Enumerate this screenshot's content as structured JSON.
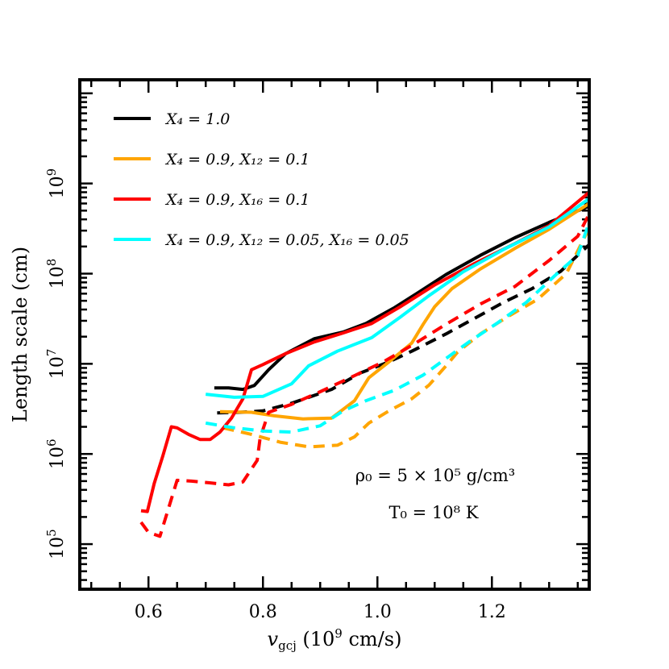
{
  "chart_data": {
    "type": "line",
    "xlabel": {
      "var": "v",
      "sub": "gcj",
      "rest": " (10",
      "exp": "9",
      "tail": " cm/s)"
    },
    "ylabel": "Length scale (cm)",
    "xlim": [
      0.48,
      1.37
    ],
    "ylim_log10": [
      4.5,
      10.15
    ],
    "y_log_scale": true,
    "x_ticks": [
      0.6,
      0.8,
      1.0,
      1.2
    ],
    "x_tick_labels": [
      "0.6",
      "0.8",
      "1.0",
      "1.2"
    ],
    "y_ticks_log10": [
      5,
      6,
      7,
      8,
      9
    ],
    "y_tick_labels": [
      {
        "base": "10",
        "exp": "5"
      },
      {
        "base": "10",
        "exp": "6"
      },
      {
        "base": "10",
        "exp": "7"
      },
      {
        "base": "10",
        "exp": "8"
      },
      {
        "base": "10",
        "exp": "9"
      }
    ],
    "legend_position": "top-left",
    "legend": [
      {
        "key": "black",
        "color": "#000000",
        "label": "X₄ = 1.0"
      },
      {
        "key": "orange",
        "color": "#FFA500",
        "label": "X₄ = 0.9, X₁₂ = 0.1"
      },
      {
        "key": "red",
        "color": "#FF0000",
        "label": "X₄ = 0.9, X₁₆ = 0.1"
      },
      {
        "key": "cyan",
        "color": "#00FFFF",
        "label": "X₄ = 0.9, X₁₂ = 0.05, X₁₆ = 0.05"
      }
    ],
    "annotations": [
      {
        "text": "ρ₀ = 5 × 10⁵ g/cm³"
      },
      {
        "text": "T₀ = 10⁸ K"
      }
    ],
    "series": [
      {
        "key": "black",
        "style": "solid",
        "color": "#000000",
        "points": [
          [
            0.715,
            5415000.0
          ],
          [
            0.74,
            5400000.0
          ],
          [
            0.765,
            5200000.0
          ],
          [
            0.785,
            5750000.0
          ],
          [
            0.81,
            8600000.0
          ],
          [
            0.84,
            13000000.0
          ],
          [
            0.89,
            19000000.0
          ],
          [
            0.94,
            22500000.0
          ],
          [
            0.98,
            28000000.0
          ],
          [
            1.03,
            42000000.0
          ],
          [
            1.07,
            61000000.0
          ],
          [
            1.12,
            98000000.0
          ],
          [
            1.18,
            160000000.0
          ],
          [
            1.24,
            250000000.0
          ],
          [
            1.3,
            370000000.0
          ],
          [
            1.37,
            560000000.0
          ]
        ]
      },
      {
        "key": "black",
        "style": "dashed",
        "color": "#000000",
        "points": [
          [
            0.72,
            2850000.0
          ],
          [
            0.76,
            2900000.0
          ],
          [
            0.8,
            3000000.0
          ],
          [
            0.85,
            3650000.0
          ],
          [
            0.92,
            5200000.0
          ],
          [
            0.97,
            7900000.0
          ],
          [
            1.02,
            10500000.0
          ],
          [
            1.06,
            13800000.0
          ],
          [
            1.12,
            21500000.0
          ],
          [
            1.17,
            32000000.0
          ],
          [
            1.22,
            48000000.0
          ],
          [
            1.27,
            68000000.0
          ],
          [
            1.32,
            106000000.0
          ],
          [
            1.35,
            160000000.0
          ],
          [
            1.37,
            210000000.0
          ]
        ]
      },
      {
        "key": "orange",
        "style": "solid",
        "color": "#FFA500",
        "points": [
          [
            0.725,
            2950000.0
          ],
          [
            0.78,
            2900000.0
          ],
          [
            0.82,
            2650000.0
          ],
          [
            0.87,
            2450000.0
          ],
          [
            0.92,
            2500000.0
          ],
          [
            0.96,
            3900000.0
          ],
          [
            0.985,
            7000000.0
          ],
          [
            1.02,
            10500000.0
          ],
          [
            1.06,
            17000000.0
          ],
          [
            1.08,
            27500000.0
          ],
          [
            1.1,
            43000000.0
          ],
          [
            1.13,
            68000000.0
          ],
          [
            1.18,
            113000000.0
          ],
          [
            1.24,
            190000000.0
          ],
          [
            1.3,
            310000000.0
          ],
          [
            1.37,
            600000000.0
          ]
        ]
      },
      {
        "key": "orange",
        "style": "dashed",
        "color": "#FFA500",
        "points": [
          [
            0.73,
            1950000.0
          ],
          [
            0.78,
            1650000.0
          ],
          [
            0.83,
            1350000.0
          ],
          [
            0.88,
            1200000.0
          ],
          [
            0.93,
            1250000.0
          ],
          [
            0.96,
            1550000.0
          ],
          [
            0.985,
            2200000.0
          ],
          [
            1.02,
            3000000.0
          ],
          [
            1.06,
            4100000.0
          ],
          [
            1.09,
            5800000.0
          ],
          [
            1.12,
            9500000.0
          ],
          [
            1.14,
            13500000.0
          ],
          [
            1.18,
            21500000.0
          ],
          [
            1.23,
            34000000.0
          ],
          [
            1.28,
            52000000.0
          ],
          [
            1.33,
            100000000.0
          ],
          [
            1.37,
            320000000.0
          ]
        ]
      },
      {
        "key": "red",
        "style": "solid",
        "color": "#FF0000",
        "points": [
          [
            0.587,
            235000.0
          ],
          [
            0.598,
            230000.0
          ],
          [
            0.61,
            470000.0
          ],
          [
            0.625,
            950000.0
          ],
          [
            0.64,
            2000000.0
          ],
          [
            0.65,
            1950000.0
          ],
          [
            0.67,
            1650000.0
          ],
          [
            0.69,
            1450000.0
          ],
          [
            0.708,
            1450000.0
          ],
          [
            0.725,
            1750000.0
          ],
          [
            0.745,
            2500000.0
          ],
          [
            0.765,
            4100000.0
          ],
          [
            0.78,
            8600000.0
          ],
          [
            0.8,
            9800000.0
          ],
          [
            0.84,
            13000000.0
          ],
          [
            0.89,
            17500000.0
          ],
          [
            0.94,
            22000000.0
          ],
          [
            0.99,
            28000000.0
          ],
          [
            1.04,
            43000000.0
          ],
          [
            1.1,
            75000000.0
          ],
          [
            1.17,
            130000000.0
          ],
          [
            1.24,
            215000000.0
          ],
          [
            1.3,
            340000000.0
          ],
          [
            1.37,
            800000000.0
          ]
        ]
      },
      {
        "key": "red",
        "style": "dashed",
        "color": "#FF0000",
        "points": [
          [
            0.587,
            175000.0
          ],
          [
            0.6,
            135000.0
          ],
          [
            0.62,
            122000.0
          ],
          [
            0.635,
            250000.0
          ],
          [
            0.65,
            510000.0
          ],
          [
            0.675,
            500000.0
          ],
          [
            0.705,
            480000.0
          ],
          [
            0.74,
            455000.0
          ],
          [
            0.765,
            490000.0
          ],
          [
            0.79,
            850000.0
          ],
          [
            0.795,
            1500000.0
          ],
          [
            0.81,
            2900000.0
          ],
          [
            0.85,
            3550000.0
          ],
          [
            0.9,
            4900000.0
          ],
          [
            0.96,
            7400000.0
          ],
          [
            1.01,
            10500000.0
          ],
          [
            1.06,
            16000000.0
          ],
          [
            1.12,
            27500000.0
          ],
          [
            1.18,
            46000000.0
          ],
          [
            1.24,
            72000000.0
          ],
          [
            1.3,
            140000000.0
          ],
          [
            1.35,
            260000000.0
          ],
          [
            1.37,
            460000000.0
          ]
        ]
      },
      {
        "key": "cyan",
        "style": "solid",
        "color": "#00FFFF",
        "points": [
          [
            0.7,
            4600000.0
          ],
          [
            0.75,
            4250000.0
          ],
          [
            0.8,
            4350000.0
          ],
          [
            0.85,
            6000000.0
          ],
          [
            0.88,
            9500000.0
          ],
          [
            0.93,
            13800000.0
          ],
          [
            0.99,
            19500000.0
          ],
          [
            1.04,
            33000000.0
          ],
          [
            1.09,
            57000000.0
          ],
          [
            1.15,
            105000000.0
          ],
          [
            1.22,
            185000000.0
          ],
          [
            1.3,
            330000000.0
          ],
          [
            1.37,
            680000000.0
          ]
        ]
      },
      {
        "key": "cyan",
        "style": "dashed",
        "color": "#00FFFF",
        "points": [
          [
            0.7,
            2200000.0
          ],
          [
            0.75,
            1950000.0
          ],
          [
            0.8,
            1800000.0
          ],
          [
            0.85,
            1750000.0
          ],
          [
            0.9,
            2050000.0
          ],
          [
            0.94,
            3000000.0
          ],
          [
            0.98,
            3900000.0
          ],
          [
            1.03,
            5100000.0
          ],
          [
            1.08,
            7500000.0
          ],
          [
            1.12,
            11500000.0
          ],
          [
            1.16,
            17500000.0
          ],
          [
            1.21,
            28500000.0
          ],
          [
            1.26,
            48000000.0
          ],
          [
            1.31,
            95000000.0
          ],
          [
            1.35,
            160000000.0
          ],
          [
            1.37,
            370000000.0
          ]
        ]
      }
    ]
  }
}
